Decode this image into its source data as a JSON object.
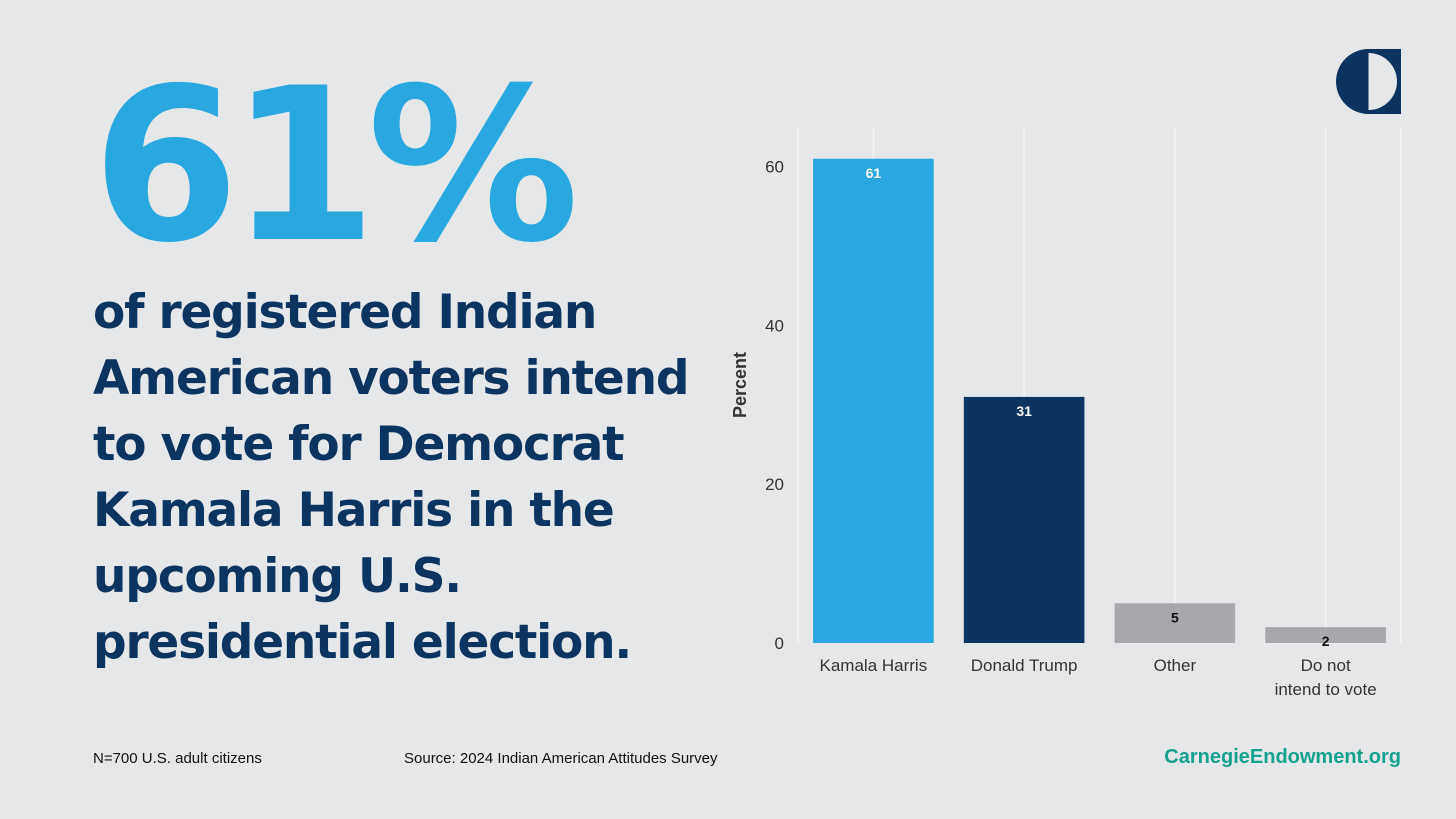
{
  "headline": {
    "big_stat": "61%",
    "text": "of registered Indian American voters intend to vote for Democrat Kamala Harris in the upcoming U.S. presidential election."
  },
  "footer": {
    "sample": "N=700 U.S. adult citizens",
    "source": "Source: 2024 Indian American Attitudes Survey",
    "site": "CarnegieEndowment.org"
  },
  "colors": {
    "harris": "#29a8e0",
    "trump": "#0b3560",
    "other": "#a7a8ab",
    "site": "#14a28f"
  },
  "logo": {
    "icon": "carnegie-logo-icon"
  },
  "chart_data": {
    "type": "bar",
    "categories": [
      "Kamala Harris",
      "Donald Trump",
      "Other",
      "Do not intend to vote"
    ],
    "category_lines": [
      [
        "Kamala Harris"
      ],
      [
        "Donald Trump"
      ],
      [
        "Other"
      ],
      [
        "Do not",
        "intend to vote"
      ]
    ],
    "values": [
      61,
      31,
      5,
      2
    ],
    "data_labels": [
      "61",
      "31",
      "5",
      "2"
    ],
    "bar_colors": [
      "#29a8e0",
      "#0b3560",
      "#a7a8ab",
      "#a7a8ab"
    ],
    "label_colors": [
      "#ffffff",
      "#ffffff",
      "#111111",
      "#111111"
    ],
    "ylabel": "Percent",
    "ylim": [
      0,
      65
    ],
    "yticks": [
      0,
      20,
      40,
      60
    ],
    "grid": "vertical",
    "legend": "none"
  }
}
